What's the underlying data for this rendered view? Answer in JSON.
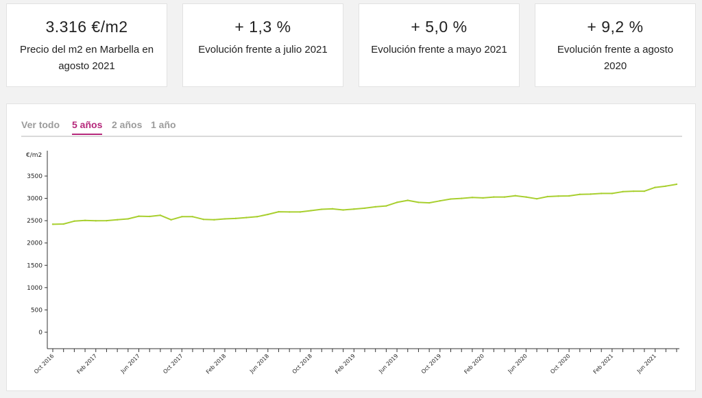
{
  "cards": [
    {
      "value": "3.316 €/m2",
      "desc": "Precio del m2 en Marbella en agosto 2021"
    },
    {
      "value": "+ 1,3 %",
      "desc": "Evolución frente a julio 2021"
    },
    {
      "value": "+ 5,0 %",
      "desc": "Evolución frente a mayo 2021"
    },
    {
      "value": "+ 9,2 %",
      "desc": "Evolución frente a agosto 2020"
    }
  ],
  "tabs": [
    {
      "label": "Ver todo",
      "active": false
    },
    {
      "label": "5 años",
      "active": true
    },
    {
      "label": "2 años",
      "active": false
    },
    {
      "label": "1 año",
      "active": false
    }
  ],
  "chart_data": {
    "type": "line",
    "ylabel": "€/m2",
    "ylim": [
      0,
      3500
    ],
    "yticks": [
      0,
      500,
      1000,
      1500,
      2000,
      2500,
      3000,
      3500
    ],
    "line_color": "#a8cf2e",
    "x_tick_labels": [
      "Oct 2016",
      "Feb 2017",
      "Jun 2017",
      "Oct 2017",
      "Feb 2018",
      "Jun 2018",
      "Oct 2018",
      "Feb 2019",
      "Jun 2019",
      "Oct 2019",
      "Feb 2020",
      "Jun 2020",
      "Oct 2020",
      "Feb 2021",
      "Jun 2021"
    ],
    "x": [
      "2016-10",
      "2016-11",
      "2016-12",
      "2017-01",
      "2017-02",
      "2017-03",
      "2017-04",
      "2017-05",
      "2017-06",
      "2017-07",
      "2017-08",
      "2017-09",
      "2017-10",
      "2017-11",
      "2017-12",
      "2018-01",
      "2018-02",
      "2018-03",
      "2018-04",
      "2018-05",
      "2018-06",
      "2018-07",
      "2018-08",
      "2018-09",
      "2018-10",
      "2018-11",
      "2018-12",
      "2019-01",
      "2019-02",
      "2019-03",
      "2019-04",
      "2019-05",
      "2019-06",
      "2019-07",
      "2019-08",
      "2019-09",
      "2019-10",
      "2019-11",
      "2019-12",
      "2020-01",
      "2020-02",
      "2020-03",
      "2020-04",
      "2020-05",
      "2020-06",
      "2020-07",
      "2020-08",
      "2020-09",
      "2020-10",
      "2020-11",
      "2020-12",
      "2021-01",
      "2021-02",
      "2021-03",
      "2021-04",
      "2021-05",
      "2021-06",
      "2021-07",
      "2021-08"
    ],
    "values": [
      2420,
      2425,
      2490,
      2505,
      2498,
      2500,
      2520,
      2540,
      2600,
      2595,
      2620,
      2520,
      2590,
      2590,
      2530,
      2520,
      2540,
      2550,
      2570,
      2590,
      2640,
      2700,
      2695,
      2695,
      2725,
      2755,
      2765,
      2740,
      2760,
      2780,
      2810,
      2830,
      2910,
      2955,
      2910,
      2900,
      2945,
      2985,
      3000,
      3020,
      3010,
      3030,
      3030,
      3060,
      3030,
      2990,
      3040,
      3050,
      3055,
      3090,
      3095,
      3110,
      3110,
      3150,
      3160,
      3160,
      3245,
      3275,
      3316
    ]
  }
}
